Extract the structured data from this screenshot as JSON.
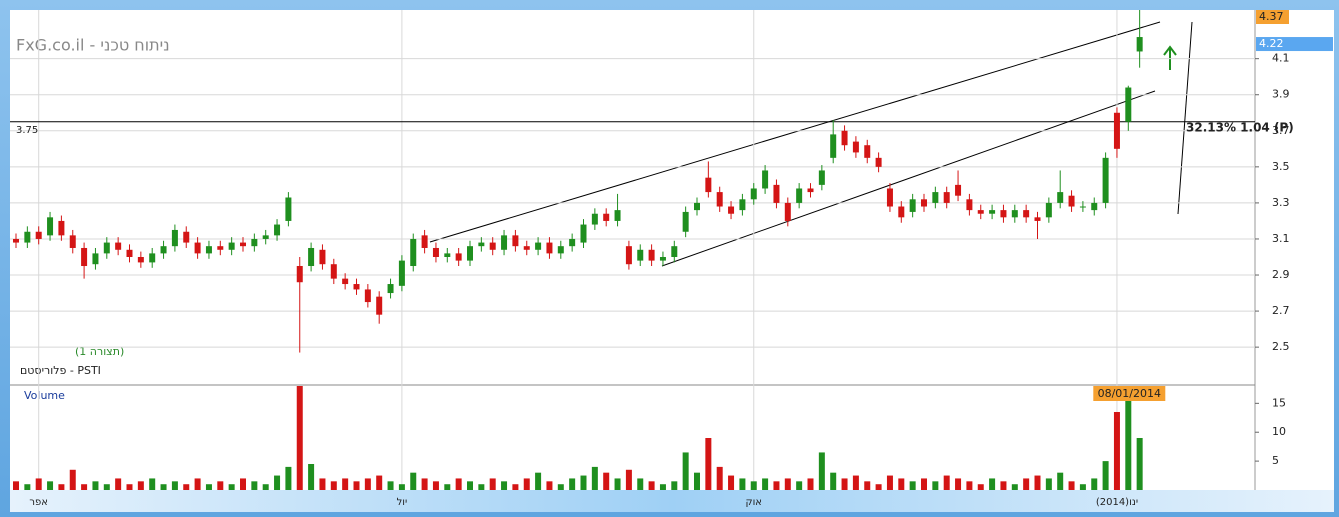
{
  "chart_data": {
    "type": "candlestick",
    "title": "FxG.co.il - ניתוח טכני",
    "layout_label": "(תצורה 1)",
    "symbol_label": "פלוריסטם - PSTI",
    "up_color": "#1f8f1f",
    "down_color": "#d41515",
    "categories": [
      null,
      null,
      "אפר",
      null,
      null,
      null,
      null,
      null,
      null,
      null,
      null,
      null,
      null,
      null,
      null,
      null,
      null,
      null,
      null,
      null,
      null,
      null,
      null,
      null,
      null,
      null,
      null,
      null,
      null,
      null,
      null,
      null,
      null,
      null,
      "יול",
      null,
      null,
      null,
      null,
      null,
      null,
      null,
      null,
      null,
      null,
      null,
      null,
      null,
      null,
      null,
      null,
      null,
      null,
      null,
      null,
      null,
      null,
      null,
      null,
      null,
      null,
      null,
      null,
      null,
      null,
      "אוק",
      null,
      null,
      null,
      null,
      null,
      null,
      null,
      null,
      null,
      null,
      null,
      null,
      null,
      null,
      null,
      null,
      null,
      null,
      null,
      null,
      null,
      null,
      null,
      null,
      null,
      null,
      null,
      null,
      null,
      null,
      null,
      "(2014)ינו",
      null,
      null
    ],
    "open": [
      3.1,
      3.08,
      3.14,
      3.12,
      3.2,
      3.12,
      3.05,
      2.96,
      3.02,
      3.08,
      3.04,
      3.0,
      2.97,
      3.02,
      3.06,
      3.14,
      3.08,
      3.02,
      3.06,
      3.04,
      3.08,
      3.06,
      3.1,
      3.12,
      3.2,
      2.95,
      2.95,
      3.04,
      2.96,
      2.88,
      2.85,
      2.82,
      2.78,
      2.8,
      2.84,
      2.95,
      3.12,
      3.05,
      3.0,
      3.02,
      2.98,
      3.06,
      3.08,
      3.04,
      3.12,
      3.06,
      3.04,
      3.08,
      3.02,
      3.06,
      3.08,
      3.18,
      3.24,
      3.2,
      3.06,
      2.98,
      3.04,
      2.98,
      3.0,
      3.14,
      3.26,
      3.44,
      3.36,
      3.28,
      3.26,
      3.32,
      3.38,
      3.4,
      3.3,
      3.3,
      3.38,
      3.4,
      3.55,
      3.7,
      3.64,
      3.62,
      3.55,
      3.38,
      3.28,
      3.25,
      3.32,
      3.3,
      3.36,
      3.4,
      3.32,
      3.26,
      3.24,
      3.26,
      3.22,
      3.26,
      3.22,
      3.22,
      3.3,
      3.34,
      3.28,
      3.26,
      3.3,
      3.8,
      3.75,
      4.14
    ],
    "high": [
      3.13,
      3.17,
      3.17,
      3.25,
      3.23,
      3.15,
      3.08,
      3.05,
      3.11,
      3.11,
      3.07,
      3.03,
      3.05,
      3.09,
      3.18,
      3.17,
      3.11,
      3.09,
      3.09,
      3.11,
      3.11,
      3.13,
      3.15,
      3.21,
      3.36,
      3.0,
      3.08,
      3.07,
      2.99,
      2.91,
      2.88,
      2.85,
      2.81,
      2.88,
      3.01,
      3.13,
      3.15,
      3.08,
      3.05,
      3.05,
      3.09,
      3.11,
      3.11,
      3.15,
      3.15,
      3.09,
      3.11,
      3.11,
      3.09,
      3.13,
      3.21,
      3.27,
      3.27,
      3.35,
      3.09,
      3.07,
      3.07,
      3.03,
      3.09,
      3.28,
      3.33,
      3.53,
      3.39,
      3.31,
      3.35,
      3.41,
      3.51,
      3.43,
      3.33,
      3.41,
      3.41,
      3.51,
      3.76,
      3.73,
      3.67,
      3.65,
      3.58,
      3.41,
      3.31,
      3.35,
      3.35,
      3.39,
      3.39,
      3.48,
      3.35,
      3.29,
      3.29,
      3.29,
      3.29,
      3.29,
      3.25,
      3.33,
      3.48,
      3.37,
      3.31,
      3.33,
      3.58,
      3.83,
      3.95,
      4.37
    ],
    "low": [
      3.05,
      3.05,
      3.07,
      3.09,
      3.09,
      3.02,
      2.88,
      2.93,
      2.99,
      3.01,
      2.97,
      2.94,
      2.94,
      2.99,
      3.03,
      3.05,
      2.99,
      2.99,
      3.01,
      3.01,
      3.03,
      3.03,
      3.07,
      3.09,
      3.17,
      2.47,
      2.92,
      2.93,
      2.85,
      2.82,
      2.79,
      2.72,
      2.63,
      2.77,
      2.81,
      2.92,
      3.02,
      2.97,
      2.97,
      2.95,
      2.95,
      3.03,
      3.01,
      3.01,
      3.03,
      3.01,
      3.01,
      2.99,
      2.99,
      3.03,
      3.05,
      3.15,
      3.17,
      3.17,
      2.93,
      2.95,
      2.95,
      2.95,
      2.97,
      3.11,
      3.23,
      3.33,
      3.25,
      3.21,
      3.23,
      3.29,
      3.35,
      3.27,
      3.17,
      3.27,
      3.33,
      3.37,
      3.52,
      3.59,
      3.55,
      3.52,
      3.47,
      3.25,
      3.19,
      3.22,
      3.25,
      3.27,
      3.27,
      3.31,
      3.23,
      3.21,
      3.21,
      3.19,
      3.19,
      3.19,
      3.1,
      3.19,
      3.27,
      3.25,
      3.25,
      3.23,
      3.27,
      3.55,
      3.7,
      4.05
    ],
    "close": [
      3.08,
      3.14,
      3.1,
      3.22,
      3.12,
      3.05,
      2.95,
      3.02,
      3.08,
      3.04,
      3.0,
      2.97,
      3.02,
      3.06,
      3.15,
      3.08,
      3.02,
      3.06,
      3.04,
      3.08,
      3.06,
      3.1,
      3.12,
      3.18,
      3.33,
      2.86,
      3.05,
      2.96,
      2.88,
      2.85,
      2.82,
      2.75,
      2.68,
      2.85,
      2.98,
      3.1,
      3.05,
      3.0,
      3.02,
      2.98,
      3.06,
      3.08,
      3.04,
      3.12,
      3.06,
      3.04,
      3.08,
      3.02,
      3.06,
      3.1,
      3.18,
      3.24,
      3.2,
      3.26,
      2.96,
      3.04,
      2.98,
      3.0,
      3.06,
      3.25,
      3.3,
      3.36,
      3.28,
      3.24,
      3.32,
      3.38,
      3.48,
      3.3,
      3.2,
      3.38,
      3.36,
      3.48,
      3.68,
      3.62,
      3.58,
      3.55,
      3.5,
      3.28,
      3.22,
      3.32,
      3.28,
      3.36,
      3.3,
      3.34,
      3.26,
      3.24,
      3.26,
      3.22,
      3.26,
      3.22,
      3.2,
      3.3,
      3.36,
      3.28,
      3.28,
      3.3,
      3.55,
      3.6,
      3.94,
      4.22
    ],
    "ylim": [
      2.29,
      4.37
    ],
    "yticks": [
      2.5,
      2.7,
      2.9,
      3.1,
      3.3,
      3.5,
      3.7,
      3.9,
      4.1
    ],
    "reference_line": 3.75,
    "annotation": "32.13% 1.04 (P)",
    "high_price": 4.37,
    "last_price": 4.22,
    "date_label": "08/01/2014",
    "volume": {
      "label": "Volume",
      "values": [
        1.5,
        1,
        2,
        1.5,
        1,
        3.5,
        1,
        1.5,
        1,
        2,
        1,
        1.5,
        2,
        1,
        1.5,
        1,
        2,
        1,
        1.5,
        1,
        2,
        1.5,
        1,
        2.5,
        4,
        18,
        4.5,
        2,
        1.5,
        2,
        1.5,
        2,
        2.5,
        1.5,
        1,
        3,
        2,
        1.5,
        1,
        2,
        1.5,
        1,
        2,
        1.5,
        1,
        2,
        3,
        1.5,
        1,
        2,
        2.5,
        4,
        3,
        2,
        3.5,
        2,
        1.5,
        1,
        1.5,
        6.5,
        3,
        9,
        4,
        2.5,
        2,
        1.5,
        2,
        1.5,
        2,
        1.5,
        2,
        6.5,
        3,
        2,
        2.5,
        1.5,
        1,
        2.5,
        2,
        1.5,
        2,
        1.5,
        2.5,
        2,
        1.5,
        1,
        2,
        1.5,
        1,
        2,
        2.5,
        2,
        3,
        1.5,
        1,
        2,
        5,
        13.5,
        15.5,
        9
      ],
      "ylim": [
        0,
        18
      ],
      "yticks": [
        5,
        10,
        15
      ]
    }
  }
}
